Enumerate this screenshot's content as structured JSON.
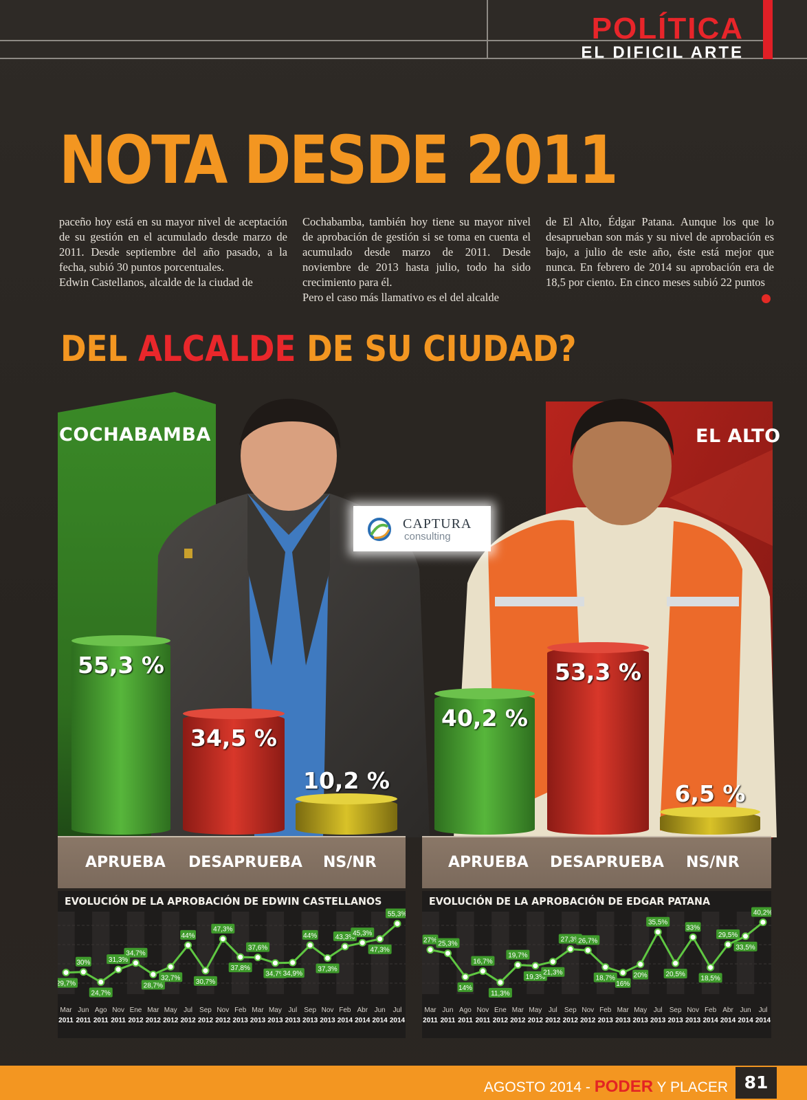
{
  "section": {
    "title": "POLÍTICA",
    "subtitle": "EL DIFICIL ARTE"
  },
  "headline": "NOTA DESDE 2011",
  "columns": [
    [
      "paceño hoy está en su mayor nivel de aceptación de su gestión en el acumulado desde marzo de 2011. Desde septiembre del año pasado, a la fecha, subió 30 puntos porcentuales.",
      "Edwin Castellanos, alcalde de la ciudad de"
    ],
    [
      "Cochabamba, también hoy tiene su mayor nivel de aprobación de gestión si se toma en cuenta el acumulado desde marzo de 2011. Desde noviembre de 2013 hasta julio, todo ha sido crecimiento para él.",
      "Pero el caso más llamativo es el del alcalde"
    ],
    [
      "de El Alto, Édgar Patana. Aunque los que lo desaprueban son más y su nivel de aprobación es bajo, a julio de este año, éste está mejor que nunca. En febrero de 2014 su aprobación era de 18,5 por ciento. En cinco meses subió 22 puntos"
    ]
  ],
  "question": {
    "part1": "DEL ",
    "highlight": "ALCALDE",
    "part2": " DE SU CIUDAD?"
  },
  "logo": {
    "name": "CAPTURA",
    "sub": "consulting"
  },
  "categories": [
    "APRUEBA",
    "DESAPRUEBA",
    "NS/NR"
  ],
  "panels": [
    {
      "city": "COCHABAMBA",
      "values": [
        55.3,
        34.5,
        10.2
      ],
      "labels": [
        "55,3 %",
        "34,5 %",
        "10,2 %"
      ],
      "evolution_title": "EVOLUCIÓN DE LA APROBACIÓN DE EDWIN CASTELLANOS"
    },
    {
      "city": "EL ALTO",
      "values": [
        40.2,
        53.3,
        6.5
      ],
      "labels": [
        "40,2 %",
        "53,3 %",
        "6,5 %"
      ],
      "evolution_title": "EVOLUCIÓN DE LA APROBACIÓN DE EDGAR PATANA"
    }
  ],
  "colors": {
    "aprueba": "#3f9b2c",
    "desaprueba": "#c0281f",
    "nsnr": "#c9b21a",
    "line": "#5fc742",
    "accent": "#f39621"
  },
  "chart_data": [
    {
      "type": "bar",
      "categories": [
        "APRUEBA",
        "DESAPRUEBA",
        "NS/NR"
      ],
      "values": [
        55.3,
        34.5,
        10.2
      ]
    },
    {
      "type": "bar",
      "categories": [
        "APRUEBA",
        "DESAPRUEBA",
        "NS/NR"
      ],
      "values": [
        40.2,
        53.3,
        6.5
      ]
    },
    {
      "type": "line",
      "title": "EVOLUCIÓN DE LA APROBACIÓN DE EDWIN CASTELLANOS",
      "x": [
        [
          "Mar",
          "2011"
        ],
        [
          "Jun",
          "2011"
        ],
        [
          "Ago",
          "2011"
        ],
        [
          "Nov",
          "2011"
        ],
        [
          "Ene",
          "2012"
        ],
        [
          "Mar",
          "2012"
        ],
        [
          "May",
          "2012"
        ],
        [
          "Jul",
          "2012"
        ],
        [
          "Sep",
          "2012"
        ],
        [
          "Nov",
          "2012"
        ],
        [
          "Feb",
          "2013"
        ],
        [
          "Mar",
          "2013"
        ],
        [
          "May",
          "2013"
        ],
        [
          "Jul",
          "2013"
        ],
        [
          "Sep",
          "2013"
        ],
        [
          "Nov",
          "2013"
        ],
        [
          "Feb",
          "2014"
        ],
        [
          "Abr",
          "2014"
        ],
        [
          "Jun",
          "2014"
        ],
        [
          "Jul",
          "2014"
        ]
      ],
      "y": [
        29.7,
        30,
        24.7,
        31.3,
        34.7,
        28.7,
        32.7,
        44,
        30.7,
        47.3,
        37.8,
        37.6,
        34.7,
        34.9,
        44,
        37.3,
        43.3,
        45.3,
        47.3,
        55.3
      ],
      "labels": [
        "29,7%",
        "30%",
        "24,7%",
        "31,3%",
        "34,7%",
        "28,7%",
        "32,7%",
        "44%",
        "30,7%",
        "47,3%",
        "37,8%",
        "37,6%",
        "34,7%",
        "34,9%",
        "44%",
        "37,3%",
        "43,3%",
        "45,3%",
        "47,3%",
        "55,3%"
      ],
      "ylim": [
        22,
        58
      ]
    },
    {
      "type": "line",
      "title": "EVOLUCIÓN DE LA APROBACIÓN DE EDGAR PATANA",
      "x": [
        [
          "Mar",
          "2011"
        ],
        [
          "Jun",
          "2011"
        ],
        [
          "Ago",
          "2011"
        ],
        [
          "Nov",
          "2011"
        ],
        [
          "Ene",
          "2012"
        ],
        [
          "Mar",
          "2012"
        ],
        [
          "May",
          "2012"
        ],
        [
          "Jul",
          "2012"
        ],
        [
          "Sep",
          "2012"
        ],
        [
          "Nov",
          "2012"
        ],
        [
          "Feb",
          "2013"
        ],
        [
          "Mar",
          "2013"
        ],
        [
          "May",
          "2013"
        ],
        [
          "Jul",
          "2013"
        ],
        [
          "Sep",
          "2013"
        ],
        [
          "Nov",
          "2013"
        ],
        [
          "Feb",
          "2014"
        ],
        [
          "Abr",
          "2014"
        ],
        [
          "Jun",
          "2014"
        ],
        [
          "Jul",
          "2014"
        ]
      ],
      "y": [
        27,
        25.3,
        14,
        16.7,
        11.3,
        19.7,
        19.3,
        21.3,
        27.3,
        26.7,
        18.7,
        16,
        20,
        35.5,
        20.5,
        33,
        18.5,
        29.5,
        33.5,
        40.2
      ],
      "labels": [
        "27%",
        "25,3%",
        "14%",
        "16,7%",
        "11,3%",
        "19,7%",
        "19,3%",
        "21,3%",
        "27,3%",
        "26,7%",
        "18,7%",
        "16%",
        "20%",
        "35,5%",
        "20,5%",
        "33%",
        "18,5%",
        "29,5%",
        "33,5%",
        "40,2%"
      ],
      "ylim": [
        9,
        42
      ]
    }
  ],
  "footer": {
    "date": "AGOSTO 2014 - ",
    "brand": "PODER",
    "rest": " Y PLACER",
    "page": "81"
  }
}
